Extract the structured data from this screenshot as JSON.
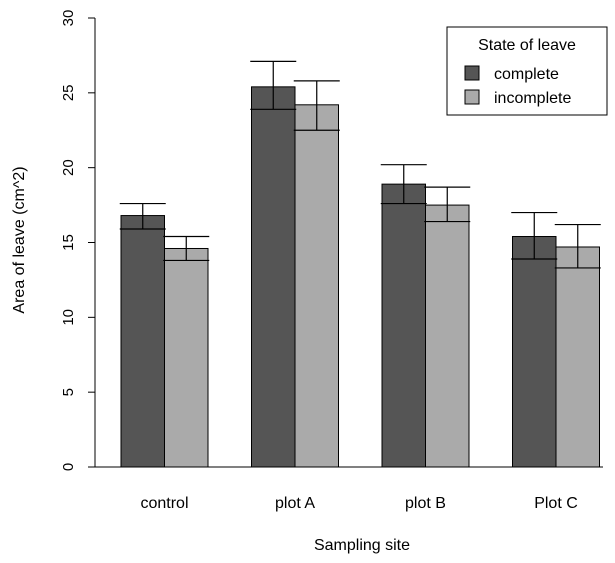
{
  "chart_data": {
    "type": "bar",
    "title": "",
    "xlabel": "Sampling site",
    "ylabel": "Area of leave (cm^2)",
    "ylim": [
      0,
      30
    ],
    "yticks": [
      "0",
      "5",
      "10",
      "15",
      "20",
      "25",
      "30"
    ],
    "categories": [
      "control",
      "plot A",
      "plot B",
      "Plot C"
    ],
    "grid": false,
    "legend": {
      "title": "State of leave",
      "position": "top-right"
    },
    "series": [
      {
        "name": "complete",
        "color": "#555555",
        "values": [
          16.8,
          25.4,
          18.9,
          15.4
        ],
        "err_low": [
          15.9,
          23.9,
          17.6,
          13.9
        ],
        "err_high": [
          17.6,
          27.1,
          20.2,
          17.0
        ]
      },
      {
        "name": "incomplete",
        "color": "#aaaaaa",
        "values": [
          14.6,
          24.2,
          17.5,
          14.7
        ],
        "err_low": [
          13.8,
          22.5,
          16.4,
          13.3
        ],
        "err_high": [
          15.4,
          25.8,
          18.7,
          16.2
        ]
      }
    ]
  }
}
